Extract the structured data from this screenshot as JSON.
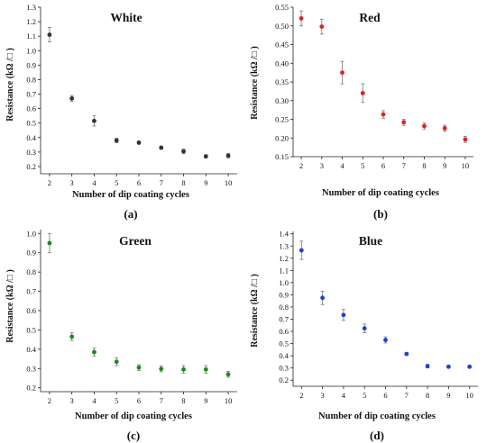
{
  "chart_data": [
    {
      "type": "scatter",
      "title": "White",
      "panel_label": "(a)",
      "xlabel": "Number of dip coating cycles",
      "ylabel": "Resistance (kΩ /□ )",
      "color": "#333333",
      "x": [
        2,
        3,
        4,
        5,
        6,
        7,
        8,
        9,
        10
      ],
      "values": [
        1.11,
        0.67,
        0.515,
        0.38,
        0.365,
        0.33,
        0.305,
        0.27,
        0.275
      ],
      "errors": [
        0.05,
        0.02,
        0.035,
        0.015,
        0.01,
        0.01,
        0.015,
        0.01,
        0.015
      ],
      "xticks": [
        "2",
        "3",
        "4",
        "5",
        "6",
        "7",
        "8",
        "9",
        "10"
      ],
      "yticks": [
        "0.2",
        "0.3",
        "0.4",
        "0.5",
        "0.6",
        "0.7",
        "0.8",
        "0.9",
        "1.0",
        "1.1",
        "1.2",
        "1.3"
      ],
      "ylim": [
        0.15,
        1.3
      ],
      "grid": false
    },
    {
      "type": "scatter",
      "title": "Red",
      "panel_label": "(b)",
      "xlabel": "Number of dip coating cycles",
      "ylabel": "Resistance (kΩ /□ )",
      "color": "#e02020",
      "x": [
        2,
        3,
        4,
        5,
        6,
        7,
        8,
        9,
        10
      ],
      "values": [
        0.52,
        0.498,
        0.375,
        0.32,
        0.263,
        0.242,
        0.232,
        0.226,
        0.196
      ],
      "errors": [
        0.02,
        0.02,
        0.03,
        0.025,
        0.01,
        0.008,
        0.008,
        0.008,
        0.008
      ],
      "xticks": [
        "2",
        "3",
        "4",
        "5",
        "6",
        "7",
        "8",
        "9",
        "10"
      ],
      "yticks": [
        "0.15",
        "0.20",
        "0.25",
        "0.30",
        "0.35",
        "0.40",
        "0.45",
        "0.50",
        "0.55"
      ],
      "ylim": [
        0.15,
        0.55
      ],
      "grid": false
    },
    {
      "type": "scatter",
      "title": "Green",
      "panel_label": "(c)",
      "xlabel": "Number of dip coating cycles",
      "ylabel": "Resistance (kΩ /□ )",
      "color": "#1a8a1a",
      "x": [
        2,
        3,
        4,
        5,
        6,
        7,
        8,
        9,
        10
      ],
      "values": [
        0.95,
        0.465,
        0.385,
        0.335,
        0.305,
        0.298,
        0.295,
        0.295,
        0.27
      ],
      "errors": [
        0.05,
        0.02,
        0.02,
        0.02,
        0.015,
        0.015,
        0.02,
        0.02,
        0.015
      ],
      "xticks": [
        "2",
        "3",
        "4",
        "5",
        "6",
        "7",
        "8",
        "9",
        "10"
      ],
      "yticks": [
        "0.2",
        "0.3",
        "0.4",
        "0.5",
        "0.6",
        "0.7",
        "0.8",
        "0.9",
        "1.0"
      ],
      "ylim": [
        0.18,
        1.02
      ],
      "grid": false
    },
    {
      "type": "scatter",
      "title": "Blue",
      "panel_label": "(d)",
      "xlabel": "Number of dip coating cycles",
      "ylabel": "Resistance (kΩ /□ )",
      "color": "#2040d0",
      "x": [
        2,
        3,
        4,
        5,
        6,
        7,
        8,
        9,
        10
      ],
      "values": [
        1.265,
        0.875,
        0.735,
        0.625,
        0.53,
        0.415,
        0.315,
        0.31,
        0.31
      ],
      "errors": [
        0.075,
        0.055,
        0.045,
        0.035,
        0.025,
        0.01,
        0.015,
        0.01,
        0.01
      ],
      "xticks": [
        "2",
        "3",
        "4",
        "5",
        "6",
        "7",
        "8",
        "9",
        "10"
      ],
      "yticks": [
        "0.2",
        "0.3",
        "0.4",
        "0.5",
        "0.6",
        "0.7",
        "0.8",
        "0.9",
        "1.0",
        "1.1",
        "1.2",
        "1.3",
        "1.4"
      ],
      "ylim": [
        0.15,
        1.42
      ],
      "grid": false
    }
  ]
}
